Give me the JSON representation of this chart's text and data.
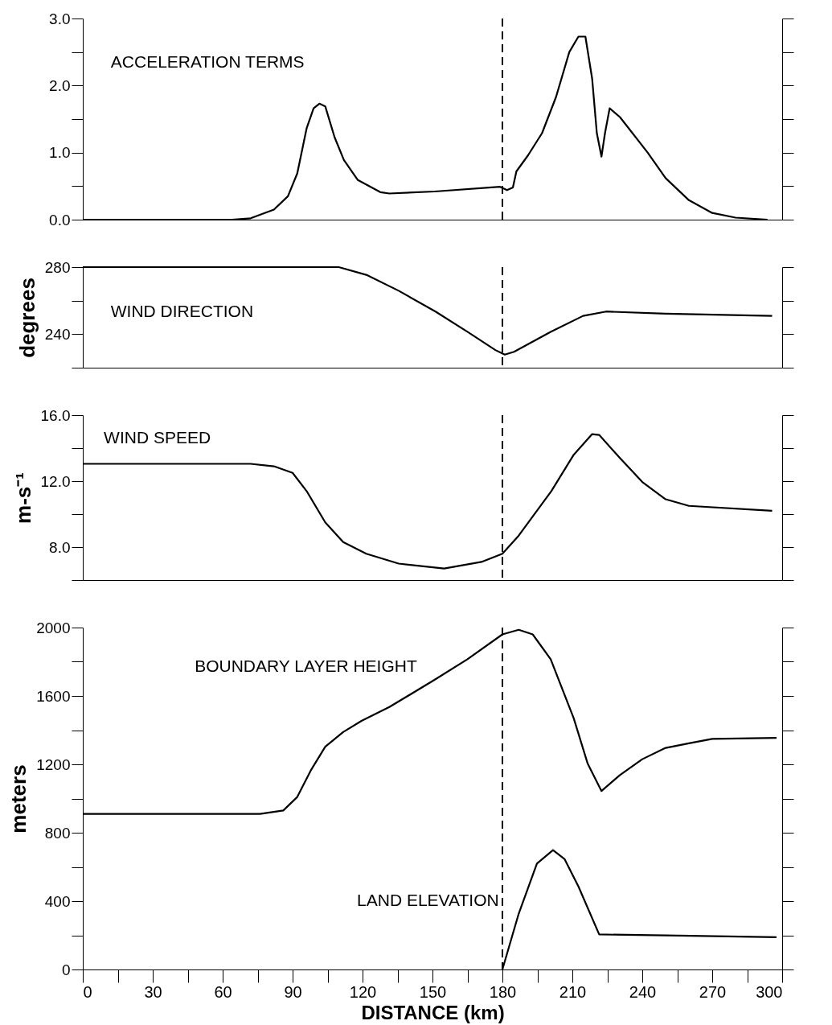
{
  "chart_data": [
    {
      "type": "line",
      "tick_labels": "y",
      "xlim": [
        0,
        300
      ],
      "ylim": [
        0,
        3
      ],
      "yticks": [
        {
          "value": 0,
          "label": "0.0"
        },
        {
          "value": 0.5,
          "label": null
        },
        {
          "value": 1,
          "label": "1.0"
        },
        {
          "value": 1.5,
          "label": null
        },
        {
          "value": 2,
          "label": "2.0"
        },
        {
          "value": 2.5,
          "label": null
        },
        {
          "value": 3,
          "label": "3.0"
        }
      ],
      "marker": "none",
      "line_style": "solid",
      "legend": false,
      "grid": false,
      "ref_lines": [
        {
          "axis": "x",
          "value": 180,
          "line_style": "dashed",
          "color": "#000000"
        }
      ],
      "series": [
        {
          "name": "ACCELERATION TERMS",
          "color": "#000000",
          "x": [
            0,
            64,
            72,
            82,
            88,
            92,
            96,
            99,
            101.5,
            104,
            108,
            112,
            118,
            127.6,
            131.5,
            151,
            179,
            182,
            184.5,
            186,
            191,
            197,
            203,
            208.7,
            212.6,
            215.6,
            218.5,
            220.5,
            222.5,
            224,
            226,
            230.4,
            242.3,
            250,
            260,
            270,
            280,
            293.7
          ],
          "values": [
            0,
            0,
            0.02,
            0.15,
            0.35,
            0.69,
            1.36,
            1.66,
            1.73,
            1.69,
            1.23,
            0.89,
            0.59,
            0.41,
            0.39,
            0.42,
            0.49,
            0.44,
            0.48,
            0.72,
            0.96,
            1.29,
            1.83,
            2.5,
            2.73,
            2.73,
            2.1,
            1.29,
            0.94,
            1.29,
            1.66,
            1.53,
            1.0,
            0.62,
            0.29,
            0.1,
            0.03,
            0
          ]
        }
      ]
    },
    {
      "type": "line",
      "tick_labels": "y",
      "xlim": [
        0,
        300
      ],
      "ylim": [
        220,
        280
      ],
      "yticks": [
        280,
        {
          "value": 260,
          "label": null
        },
        240,
        {
          "value": 220,
          "label": null
        }
      ],
      "ylabel": "degrees",
      "marker": "none",
      "line_style": "solid",
      "legend": false,
      "grid": false,
      "ref_lines": [
        {
          "axis": "x",
          "value": 180,
          "line_style": "dashed",
          "color": "#000000"
        }
      ],
      "series": [
        {
          "name": "WIND DIRECTION",
          "color": "#000000",
          "x": [
            0,
            109.8,
            121.6,
            135.5,
            151.3,
            165,
            177,
            181,
            185,
            200.7,
            214.6,
            224.5,
            250,
            295.7
          ],
          "values": [
            280,
            280,
            275.4,
            265.9,
            253.5,
            241.4,
            230.5,
            227.8,
            229.5,
            241.4,
            250.9,
            253.5,
            252.2,
            250.9
          ]
        }
      ]
    },
    {
      "type": "line",
      "tick_labels": "y",
      "xlim": [
        0,
        300
      ],
      "ylim": [
        6,
        16
      ],
      "yticks": [
        {
          "value": 16,
          "label": "16.0"
        },
        {
          "value": 14,
          "label": null
        },
        {
          "value": 12,
          "label": "12.0"
        },
        {
          "value": 10,
          "label": null
        },
        {
          "value": 8,
          "label": "8.0"
        },
        {
          "value": 6,
          "label": null
        }
      ],
      "ylabel": "m-s⁻¹",
      "marker": "none",
      "line_style": "solid",
      "legend": false,
      "grid": false,
      "ref_lines": [
        {
          "axis": "x",
          "value": 180,
          "line_style": "dashed",
          "color": "#000000"
        }
      ],
      "series": [
        {
          "name": "WIND SPEED",
          "color": "#000000",
          "x": [
            0,
            72,
            82,
            90,
            96,
            104,
            111.7,
            121.6,
            135.5,
            155,
            171,
            180,
            187,
            201,
            210.6,
            218.5,
            221.5,
            230.4,
            240,
            250,
            260,
            295.7
          ],
          "values": [
            13.05,
            13.05,
            12.9,
            12.5,
            11.4,
            9.5,
            8.3,
            7.6,
            7.0,
            6.7,
            7.1,
            7.6,
            8.7,
            11.4,
            13.6,
            14.85,
            14.8,
            13.4,
            11.95,
            10.9,
            10.5,
            10.2
          ]
        }
      ]
    },
    {
      "type": "line",
      "xlim": [
        0,
        300
      ],
      "ylim": [
        0,
        2000
      ],
      "xlabel": "DISTANCE (km)",
      "ylabel": "meters",
      "xticks": [
        0,
        {
          "value": 15,
          "label": null
        },
        30,
        {
          "value": 45,
          "label": null
        },
        60,
        {
          "value": 75,
          "label": null
        },
        90,
        {
          "value": 105,
          "label": null
        },
        120,
        {
          "value": 135,
          "label": null
        },
        150,
        {
          "value": 165,
          "label": null
        },
        180,
        {
          "value": 195,
          "label": null
        },
        210,
        {
          "value": 225,
          "label": null
        },
        240,
        {
          "value": 255,
          "label": null
        },
        270,
        {
          "value": 285,
          "label": null
        },
        300
      ],
      "yticks": [
        0,
        {
          "value": 200,
          "label": null
        },
        400,
        {
          "value": 600,
          "label": null
        },
        800,
        {
          "value": 1000,
          "label": null
        },
        1200,
        {
          "value": 1400,
          "label": null
        },
        1600,
        {
          "value": 1800,
          "label": null
        },
        2000
      ],
      "marker": "none",
      "line_style": "solid",
      "legend": false,
      "grid": false,
      "ref_lines": [
        {
          "axis": "x",
          "value": 180,
          "line_style": "dashed",
          "color": "#000000"
        }
      ],
      "series": [
        {
          "name": "BOUNDARY LAYER HEIGHT",
          "color": "#000000",
          "x": [
            0,
            76,
            86,
            92,
            98,
            104,
            111.7,
            119.7,
            131.5,
            151,
            165,
            180,
            187,
            193,
            200.7,
            210.6,
            216.6,
            222.5,
            230.4,
            240,
            250,
            260,
            270,
            297.6
          ],
          "values": [
            910,
            910,
            930,
            1009,
            1169,
            1303,
            1389,
            1455,
            1535,
            1695,
            1815,
            1960,
            1987,
            1960,
            1815,
            1469,
            1203,
            1044,
            1137,
            1230,
            1296,
            1323,
            1349,
            1355
          ]
        },
        {
          "name": "LAND ELEVATION",
          "color": "#000000",
          "x": [
            180,
            187,
            194.8,
            201.7,
            206.7,
            212.6,
            221.5,
            250,
            297.6
          ],
          "values": [
            0,
            327,
            619,
            698,
            645,
            486,
            205,
            199,
            189
          ]
        }
      ]
    }
  ]
}
